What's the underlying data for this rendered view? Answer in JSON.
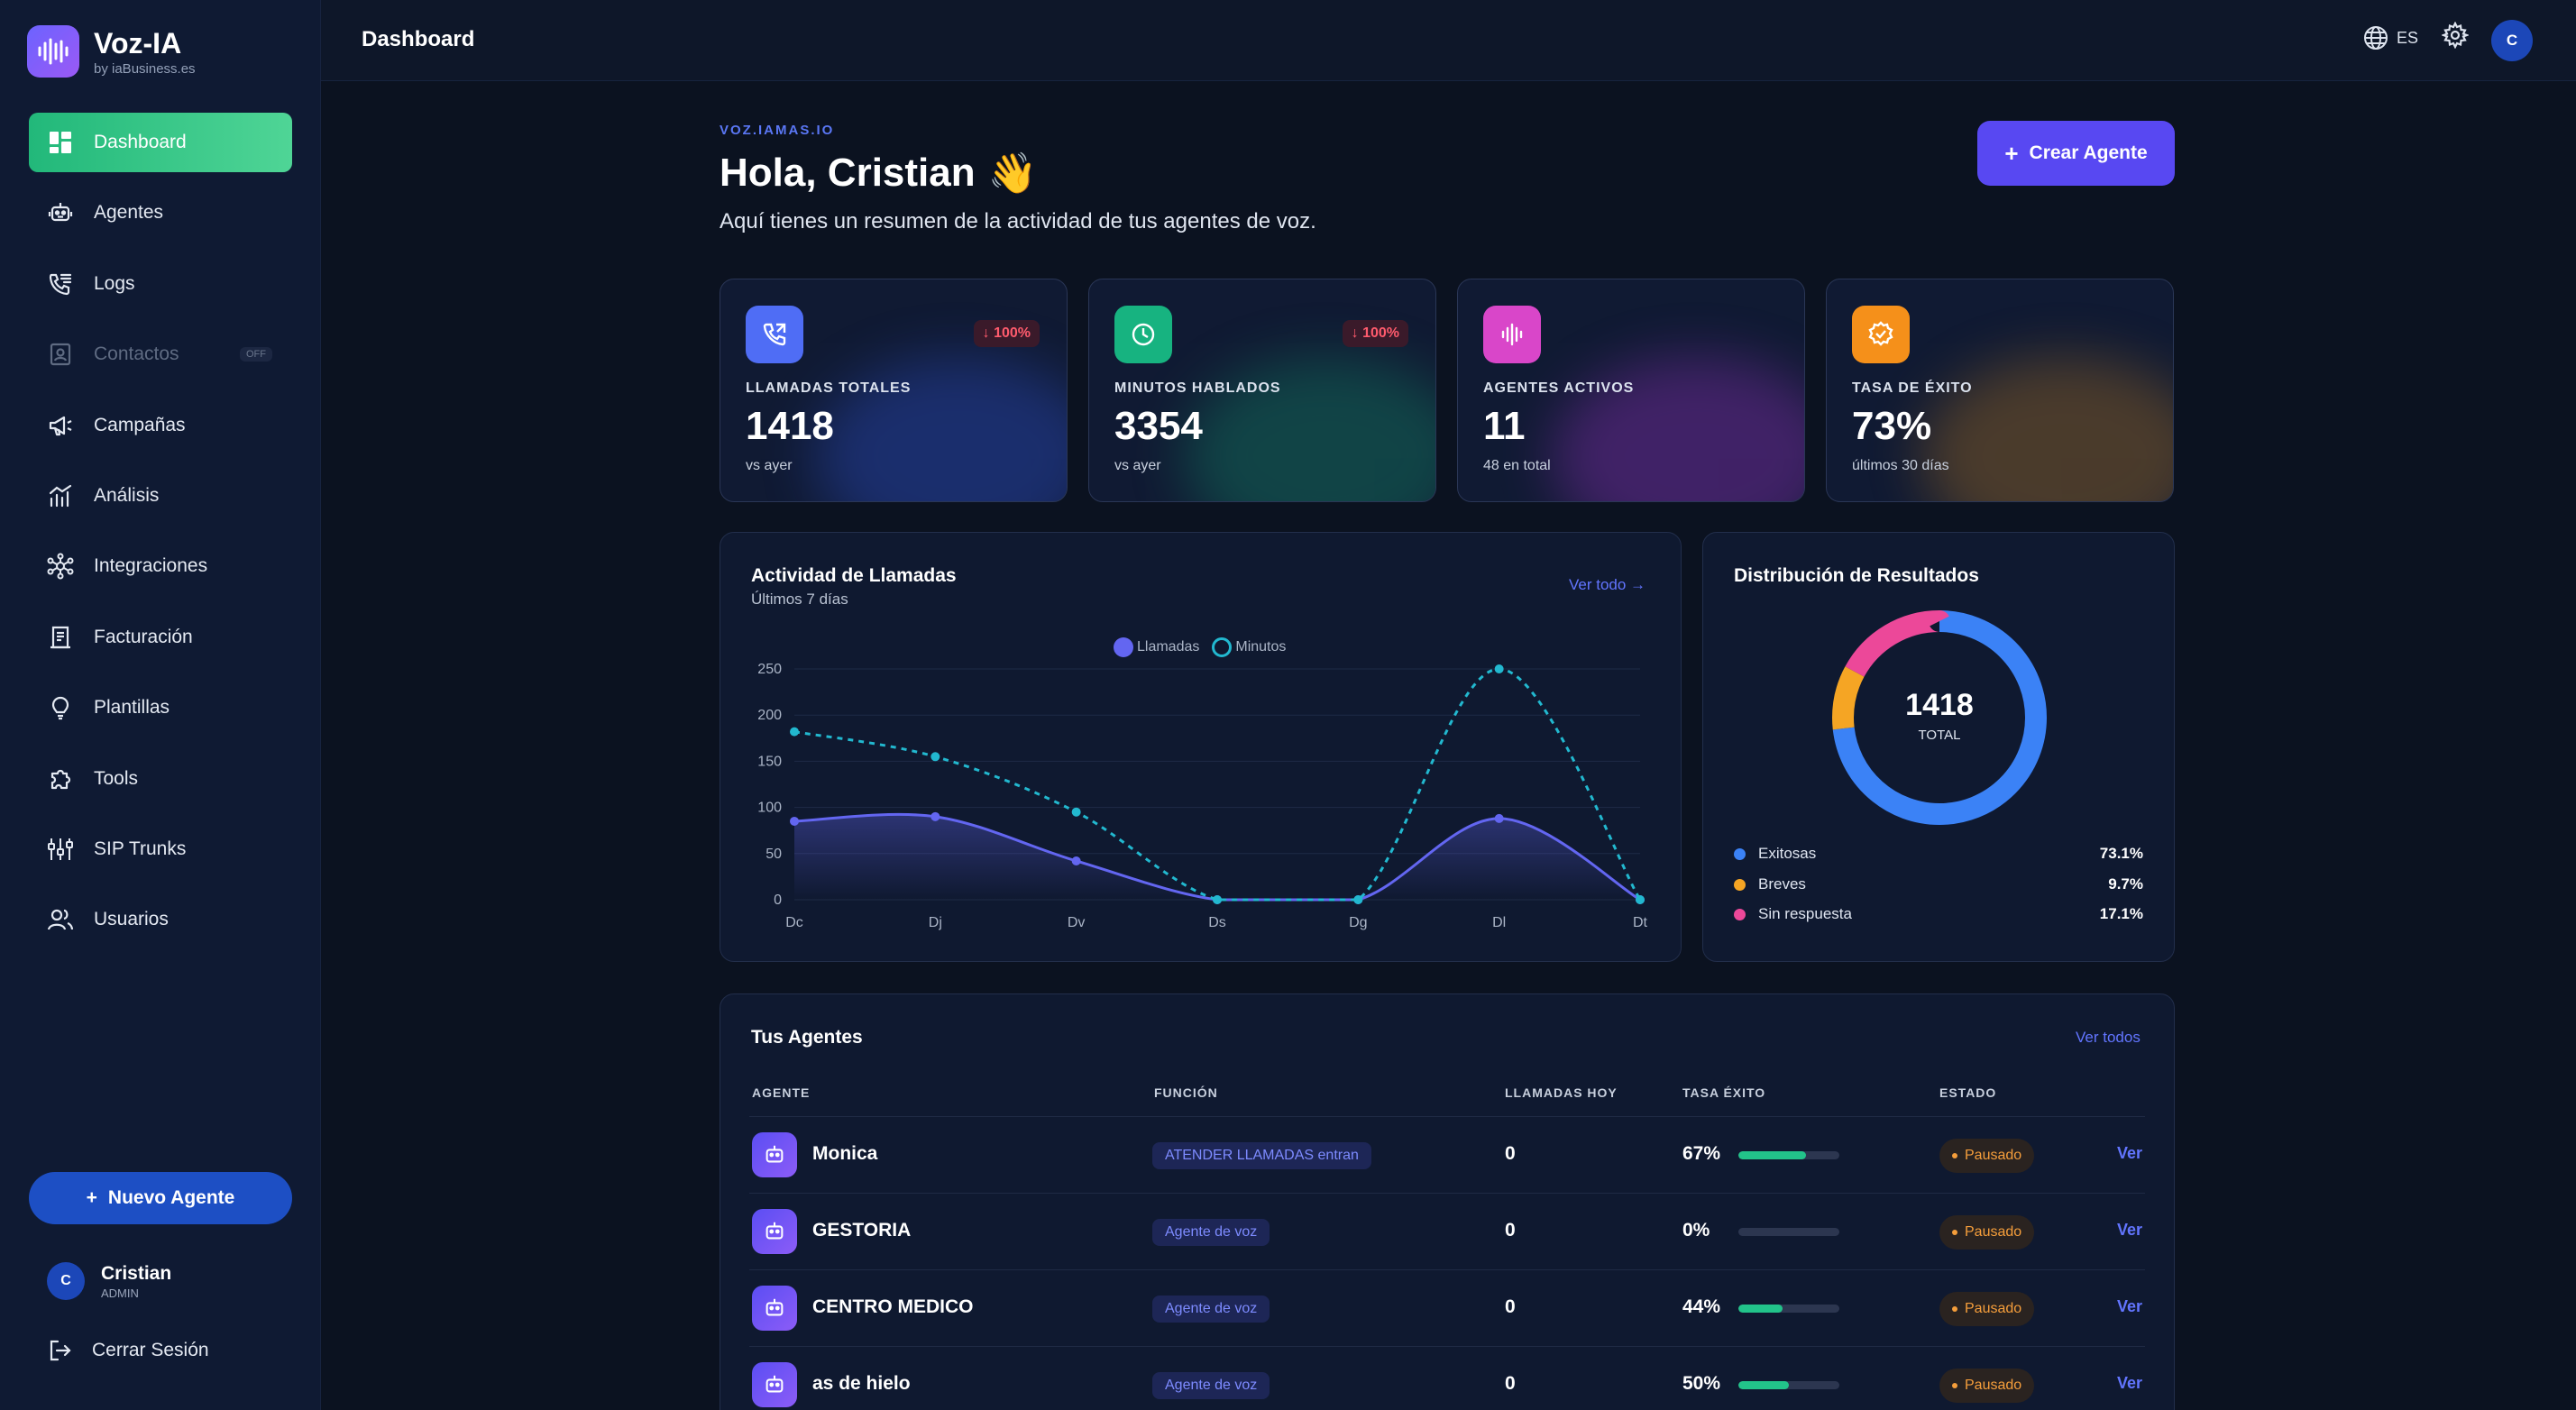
{
  "brand": {
    "name": "Voz-IA",
    "sub": "by iaBusiness.es"
  },
  "sidebar": {
    "items": [
      {
        "label": "Dashboard",
        "icon": "dashboard-icon"
      },
      {
        "label": "Agentes",
        "icon": "robot-icon"
      },
      {
        "label": "Logs",
        "icon": "phone-list-icon"
      },
      {
        "label": "Contactos",
        "icon": "contacts-icon",
        "badge": "OFF"
      },
      {
        "label": "Campañas",
        "icon": "megaphone-icon"
      },
      {
        "label": "Análisis",
        "icon": "analytics-icon"
      },
      {
        "label": "Integraciones",
        "icon": "integrations-icon"
      },
      {
        "label": "Facturación",
        "icon": "invoice-icon"
      },
      {
        "label": "Plantillas",
        "icon": "lightbulb-icon"
      },
      {
        "label": "Tools",
        "icon": "puzzle-icon"
      },
      {
        "label": "SIP Trunks",
        "icon": "sip-icon"
      },
      {
        "label": "Usuarios",
        "icon": "users-icon"
      }
    ],
    "new_agent": "Nuevo Agente",
    "user": {
      "initial": "C",
      "name": "Cristian",
      "role": "ADMIN"
    },
    "logout": "Cerrar Sesión"
  },
  "topbar": {
    "title": "Dashboard",
    "lang": "ES",
    "avatar": "C"
  },
  "header": {
    "eyebrow": "VOZ.IAMAS.IO",
    "greeting": "Hola, Cristian",
    "wave": "👋",
    "subtitle": "Aquí tienes un resumen de la actividad de tus agentes de voz.",
    "create_button": "Crear Agente"
  },
  "stats": [
    {
      "label": "LLAMADAS TOTALES",
      "value": "1418",
      "sub": "vs ayer",
      "badge": "100%",
      "color": "#4f6df5"
    },
    {
      "label": "MINUTOS HABLADOS",
      "value": "3354",
      "sub": "vs ayer",
      "badge": "100%",
      "color": "#17b380"
    },
    {
      "label": "AGENTES ACTIVOS",
      "value": "11",
      "sub": "48 en total",
      "color": "#d946c9"
    },
    {
      "label": "TASA DE ÉXITO",
      "value": "73%",
      "sub": "últimos 30 días",
      "color": "#f59e0b"
    }
  ],
  "activity": {
    "title": "Actividad de Llamadas",
    "sub": "Últimos 7 días",
    "link": "Ver todo"
  },
  "chart_data": {
    "type": "line",
    "categories": [
      "Dc",
      "Dj",
      "Dv",
      "Ds",
      "Dg",
      "Dl",
      "Dt"
    ],
    "ylim": [
      0,
      250
    ],
    "yticks": [
      0,
      50,
      100,
      150,
      200,
      250
    ],
    "series": [
      {
        "name": "Llamadas",
        "values": [
          85,
          90,
          42,
          0,
          0,
          88,
          0
        ],
        "color": "#6366f1",
        "style": "solid"
      },
      {
        "name": "Minutos",
        "values": [
          182,
          155,
          95,
          0,
          0,
          250,
          0
        ],
        "color": "#22b8cf",
        "style": "dashed"
      }
    ],
    "grid": true,
    "legend": "top-center"
  },
  "distribution": {
    "title": "Distribución de Resultados",
    "total": "1418",
    "total_label": "TOTAL",
    "items": [
      {
        "label": "Exitosas",
        "pct": "73.1%",
        "value": 73.1,
        "color": "#3b82f6"
      },
      {
        "label": "Breves",
        "pct": "9.7%",
        "value": 9.7,
        "color": "#f5a524"
      },
      {
        "label": "Sin respuesta",
        "pct": "17.1%",
        "value": 17.1,
        "color": "#ec4899"
      }
    ]
  },
  "agents": {
    "title": "Tus Agentes",
    "link": "Ver todos",
    "columns": [
      "AGENTE",
      "FUNCIÓN",
      "LLAMADAS HOY",
      "TASA ÉXITO",
      "ESTADO"
    ],
    "rows": [
      {
        "name": "Monica",
        "function": "ATENDER LLAMADAS entran",
        "calls": "0",
        "rate": "67%",
        "rate_value": 67,
        "status": "Pausado",
        "action": "Ver"
      },
      {
        "name": "GESTORIA",
        "function": "Agente de voz",
        "calls": "0",
        "rate": "0%",
        "rate_value": 0,
        "status": "Pausado",
        "action": "Ver"
      },
      {
        "name": "CENTRO MEDICO",
        "function": "Agente de voz",
        "calls": "0",
        "rate": "44%",
        "rate_value": 44,
        "status": "Pausado",
        "action": "Ver"
      },
      {
        "name": "as de hielo",
        "function": "Agente de voz",
        "calls": "0",
        "rate": "50%",
        "rate_value": 50,
        "status": "Pausado",
        "action": "Ver"
      }
    ]
  }
}
